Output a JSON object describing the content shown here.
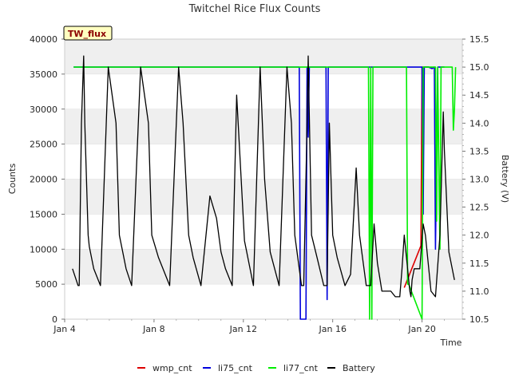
{
  "chart_data": {
    "type": "line",
    "title": "Twitchel Rice Flux Counts",
    "site_label": "TW_flux",
    "xlabel": "Time",
    "ylabel": "Counts",
    "y2label": "Battery (V)",
    "xlim": [
      4,
      21.8
    ],
    "ylim": [
      0,
      40000
    ],
    "y2lim": [
      10.5,
      15.5
    ],
    "x_ticks": [
      4,
      8,
      12,
      16,
      20
    ],
    "x_tick_labels": [
      "Jan 4",
      "Jan 8",
      "Jan 12",
      "Jan 16",
      "Jan 20"
    ],
    "y_ticks": [
      0,
      5000,
      10000,
      15000,
      20000,
      25000,
      30000,
      35000,
      40000
    ],
    "y2_ticks": [
      10.5,
      11.0,
      11.5,
      12.0,
      12.5,
      13.0,
      13.5,
      14.0,
      14.5,
      15.0,
      15.5
    ],
    "legend_position": "bottom-center",
    "series": [
      {
        "name": "wmp_cnt",
        "color": "#dd0000",
        "axis": "left",
        "x": [
          19.2,
          19.95,
          20.0,
          20.05,
          20.3,
          20.45
        ],
        "y": [
          4500,
          10500,
          36000,
          36000,
          36000,
          35800
        ]
      },
      {
        "name": "li75_cnt",
        "color": "#0000dd",
        "axis": "left",
        "x": [
          4.4,
          14.5,
          14.55,
          14.6,
          14.8,
          14.85,
          14.9,
          14.95,
          15.0,
          15.7,
          15.75,
          15.8,
          15.85,
          20.0,
          20.05,
          20.1,
          20.15,
          20.3,
          20.45,
          20.55,
          20.6,
          20.7,
          21.0
        ],
        "y": [
          36000,
          36000,
          0,
          0,
          0,
          36000,
          26000,
          36000,
          36000,
          36000,
          2800,
          36000,
          36000,
          36000,
          15000,
          36000,
          36000,
          36000,
          35800,
          36000,
          10000,
          36000,
          36000
        ]
      },
      {
        "name": "li77_cnt",
        "color": "#00ee00",
        "axis": "left",
        "x": [
          4.4,
          17.6,
          17.65,
          17.7,
          17.75,
          17.8,
          18.4,
          19.3,
          19.35,
          19.4,
          20.0,
          20.05,
          20.1,
          20.6,
          20.65,
          20.7,
          20.75,
          20.8,
          20.85,
          21.0,
          21.35,
          21.4,
          21.45,
          21.5
        ],
        "y": [
          36000,
          36000,
          0,
          36000,
          0,
          36000,
          36000,
          36000,
          5000,
          5000,
          0,
          36000,
          36000,
          36000,
          14000,
          36000,
          22000,
          10000,
          36000,
          36000,
          36000,
          27000,
          30000,
          36000
        ]
      },
      {
        "name": "Battery",
        "color": "#000000",
        "axis": "right",
        "x": [
          4.35,
          4.6,
          4.65,
          4.75,
          4.85,
          4.9,
          5.05,
          5.1,
          5.2,
          5.3,
          5.6,
          5.95,
          6.3,
          6.45,
          6.55,
          6.65,
          6.75,
          7.0,
          7.4,
          7.75,
          7.9,
          8.05,
          8.2,
          8.4,
          8.7,
          9.1,
          9.3,
          9.55,
          9.65,
          9.75,
          10.1,
          10.5,
          10.8,
          11.0,
          11.2,
          11.5,
          11.7,
          12.05,
          12.45,
          12.75,
          12.85,
          12.95,
          13.2,
          13.6,
          13.95,
          14.15,
          14.3,
          14.6,
          14.7,
          14.85,
          14.9,
          15.05,
          15.3,
          15.6,
          15.75,
          15.85,
          16.0,
          16.2,
          16.55,
          16.8,
          17.05,
          17.2,
          17.5,
          17.7,
          17.85,
          18.0,
          18.2,
          18.4,
          18.6,
          18.8,
          19.0,
          19.1,
          19.2,
          19.4,
          19.45,
          19.5,
          19.55,
          19.65,
          19.9,
          20.05,
          20.15,
          20.4,
          20.6,
          20.8,
          20.95,
          21.0,
          21.2,
          21.45
        ],
        "y": [
          11.4,
          11.1,
          11.1,
          14.0,
          15.2,
          14.0,
          12.0,
          11.8,
          11.6,
          11.4,
          11.1,
          15.0,
          14.0,
          12.0,
          11.8,
          11.6,
          11.4,
          11.1,
          15.0,
          14.0,
          12.0,
          11.8,
          11.6,
          11.4,
          11.1,
          15.0,
          14.0,
          12.0,
          11.8,
          11.6,
          11.1,
          12.7,
          12.3,
          11.7,
          11.4,
          11.1,
          14.5,
          11.9,
          11.1,
          15.0,
          14.0,
          13.0,
          11.7,
          11.1,
          15.0,
          14.0,
          12.0,
          11.1,
          11.1,
          14.0,
          15.2,
          12.0,
          11.6,
          11.1,
          11.1,
          14.0,
          12.0,
          11.6,
          11.1,
          11.3,
          13.2,
          12.0,
          11.1,
          11.1,
          12.2,
          11.5,
          11.0,
          11.0,
          11.0,
          10.9,
          10.9,
          11.4,
          12.0,
          11.2,
          11.0,
          10.9,
          11.2,
          11.4,
          11.4,
          12.2,
          12.0,
          11.0,
          10.9,
          12.0,
          14.2,
          13.5,
          11.7,
          11.2
        ]
      }
    ]
  }
}
